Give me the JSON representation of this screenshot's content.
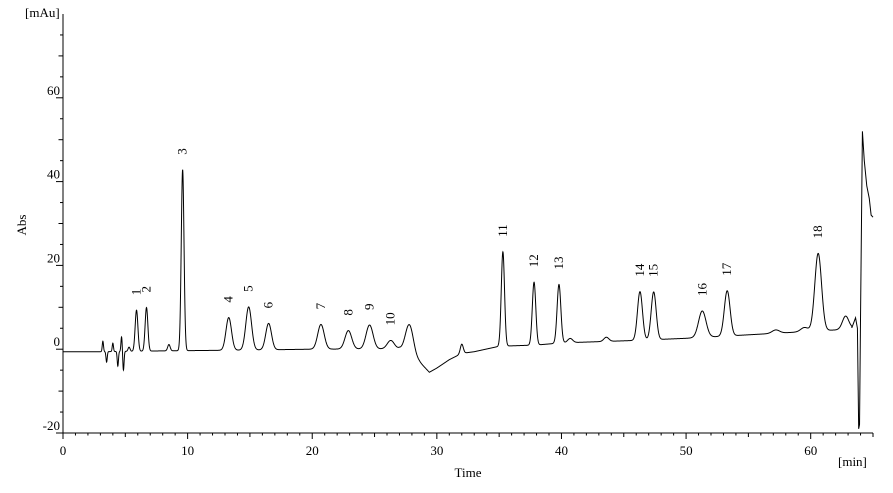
{
  "chart_data": {
    "type": "line",
    "title": "",
    "xlabel": "Time",
    "ylabel": "Abs",
    "x_unit": "[min]",
    "y_unit": "[mAu]",
    "xlim": [
      0,
      65
    ],
    "ylim": [
      -20,
      80
    ],
    "x_ticks": [
      0,
      10,
      20,
      30,
      40,
      50,
      60
    ],
    "y_ticks": [
      -20,
      0,
      20,
      40,
      60
    ],
    "grid": false,
    "line_color": "#000000",
    "baseline": [
      [
        0,
        -0.6
      ],
      [
        2.9,
        -0.6
      ],
      [
        8,
        -0.4
      ],
      [
        15,
        -0.2
      ],
      [
        20,
        0
      ],
      [
        27,
        0.1
      ],
      [
        28.6,
        -3
      ],
      [
        29.4,
        -5.5
      ],
      [
        30,
        -4.5
      ],
      [
        31,
        -2.5
      ],
      [
        32,
        -1
      ],
      [
        33,
        -0.6
      ],
      [
        35,
        0.7
      ],
      [
        38,
        1.0
      ],
      [
        40,
        1.5
      ],
      [
        43,
        1.8
      ],
      [
        46,
        2.1
      ],
      [
        50,
        2.6
      ],
      [
        53,
        3.1
      ],
      [
        56,
        3.6
      ],
      [
        59,
        4.1
      ],
      [
        62,
        4.6
      ],
      [
        63.3,
        5.1
      ]
    ],
    "noise": [
      [
        3.2,
        2.5,
        0.05
      ],
      [
        3.5,
        -2.5,
        0.05
      ],
      [
        4.0,
        2.0,
        0.05
      ],
      [
        4.4,
        -3.5,
        0.05
      ],
      [
        4.7,
        3.5,
        0.05
      ],
      [
        4.85,
        -4.5,
        0.05
      ],
      [
        5.3,
        1.0,
        0.08
      ]
    ],
    "peaks": [
      {
        "label": "1",
        "rt": 5.9,
        "height": 9.8,
        "width": 0.11
      },
      {
        "label": "2",
        "rt": 6.7,
        "height": 10.4,
        "width": 0.11
      },
      {
        "label": "",
        "rt": 8.5,
        "height": 1.5,
        "width": 0.1
      },
      {
        "label": "3",
        "rt": 9.6,
        "height": 43.2,
        "width": 0.11
      },
      {
        "label": "4",
        "rt": 13.3,
        "height": 7.8,
        "width": 0.22
      },
      {
        "label": "5",
        "rt": 14.9,
        "height": 10.3,
        "width": 0.23
      },
      {
        "label": "6",
        "rt": 16.5,
        "height": 6.3,
        "width": 0.23
      },
      {
        "label": "7",
        "rt": 20.7,
        "height": 5.9,
        "width": 0.26
      },
      {
        "label": "8",
        "rt": 22.9,
        "height": 4.4,
        "width": 0.27
      },
      {
        "label": "9",
        "rt": 24.6,
        "height": 5.7,
        "width": 0.28
      },
      {
        "label": "10",
        "rt": 26.3,
        "height": 2.0,
        "width": 0.28
      },
      {
        "label": "",
        "rt": 27.8,
        "height": 7.3,
        "width": 0.32
      },
      {
        "label": "",
        "rt": 32.0,
        "height": 2.2,
        "width": 0.12
      },
      {
        "label": "11",
        "rt": 35.3,
        "height": 22.5,
        "width": 0.13
      },
      {
        "label": "12",
        "rt": 37.8,
        "height": 15.0,
        "width": 0.14
      },
      {
        "label": "13",
        "rt": 39.8,
        "height": 14.0,
        "width": 0.15
      },
      {
        "label": "",
        "rt": 40.7,
        "height": 1.0,
        "width": 0.2
      },
      {
        "label": "",
        "rt": 43.6,
        "height": 1.0,
        "width": 0.2
      },
      {
        "label": "14",
        "rt": 46.3,
        "height": 11.6,
        "width": 0.2
      },
      {
        "label": "15",
        "rt": 47.4,
        "height": 11.4,
        "width": 0.2
      },
      {
        "label": "16",
        "rt": 51.3,
        "height": 6.3,
        "width": 0.3
      },
      {
        "label": "17",
        "rt": 53.3,
        "height": 10.8,
        "width": 0.23
      },
      {
        "label": "",
        "rt": 57.2,
        "height": 0.8,
        "width": 0.3
      },
      {
        "label": "",
        "rt": 59.5,
        "height": 1.0,
        "width": 0.3
      },
      {
        "label": "18",
        "rt": 60.6,
        "height": 18.5,
        "width": 0.27
      },
      {
        "label": "",
        "rt": 62.8,
        "height": 3.0,
        "width": 0.25
      }
    ],
    "solvent_front": [
      [
        63.3,
        5.1
      ],
      [
        63.6,
        7.5
      ],
      [
        63.75,
        5
      ],
      [
        63.85,
        -19
      ],
      [
        63.92,
        -18
      ],
      [
        64.0,
        8
      ],
      [
        64.15,
        52
      ],
      [
        64.3,
        45
      ],
      [
        64.5,
        39
      ],
      [
        64.7,
        36
      ],
      [
        64.85,
        32
      ],
      [
        65.0,
        31.5
      ]
    ]
  }
}
